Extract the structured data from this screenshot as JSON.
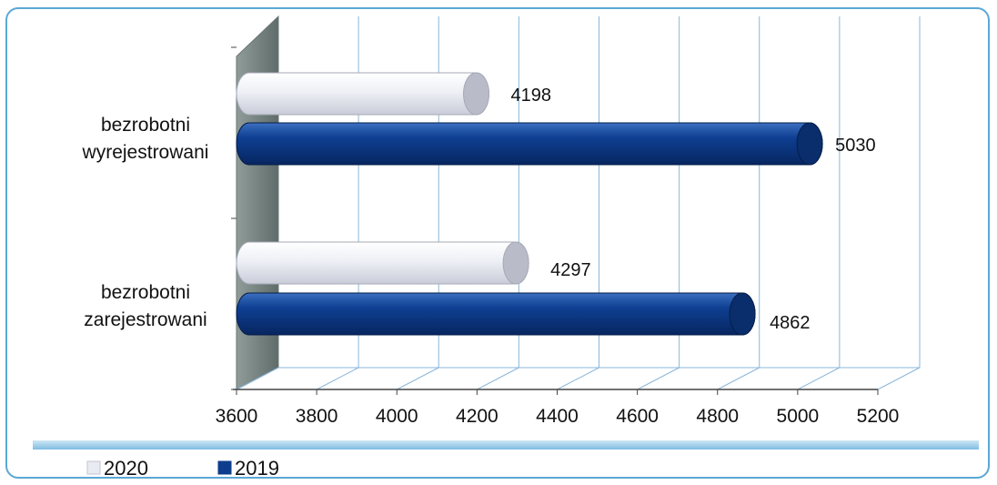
{
  "chart_data": {
    "type": "bar",
    "orientation": "horizontal",
    "categories": [
      "bezrobotni wyrejestrowani",
      "bezrobotni zarejestrowani"
    ],
    "category_lines": [
      [
        "bezrobotni",
        "wyrejestrowani"
      ],
      [
        "bezrobotni",
        "zarejestrowani"
      ]
    ],
    "series": [
      {
        "name": "2020",
        "values": [
          4198,
          4297
        ],
        "color": "#e4e6ee"
      },
      {
        "name": "2019",
        "values": [
          5030,
          4862
        ],
        "color": "#0d3d8c"
      }
    ],
    "xlim": [
      3600,
      5200
    ],
    "ticks": [
      "3600",
      "3800",
      "4000",
      "4200",
      "4400",
      "4600",
      "4800",
      "5000",
      "5200"
    ],
    "grid": true,
    "legend_position": "bottom-left",
    "style": "3d-cylinder"
  }
}
